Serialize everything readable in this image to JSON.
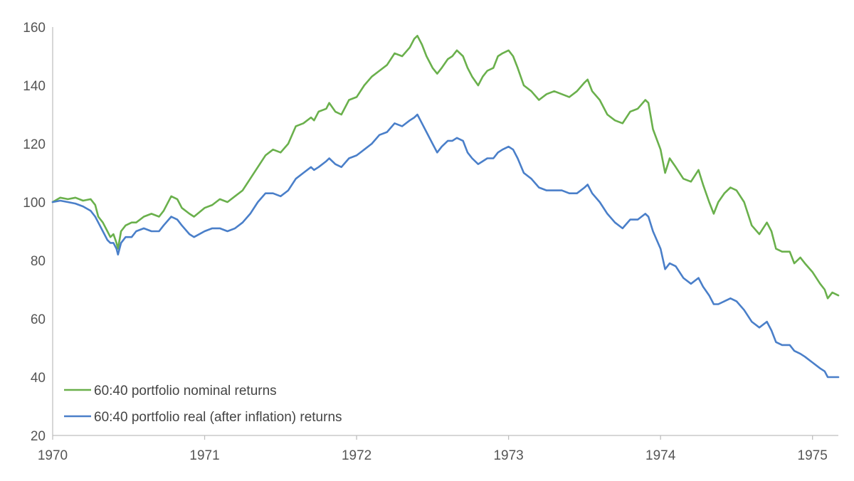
{
  "chart_data": {
    "type": "line",
    "title": "",
    "xlabel": "",
    "ylabel": "",
    "xlim": [
      1970.0,
      1975.17
    ],
    "ylim": [
      20,
      160
    ],
    "y_ticks": [
      20,
      40,
      60,
      80,
      100,
      120,
      140,
      160
    ],
    "x_ticks": [
      {
        "value": 1970,
        "label": "1970"
      },
      {
        "value": 1971,
        "label": "1971"
      },
      {
        "value": 1972,
        "label": "1972"
      },
      {
        "value": 1973,
        "label": "1973"
      },
      {
        "value": 1974,
        "label": "1974"
      },
      {
        "value": 1975,
        "label": "1975"
      }
    ],
    "grid": false,
    "legend_position": "bottom-left",
    "series": [
      {
        "name": "60:40 portfolio nominal returns",
        "color": "#6ab04c",
        "points": [
          [
            1970.0,
            100
          ],
          [
            1970.05,
            101.5
          ],
          [
            1970.1,
            101
          ],
          [
            1970.15,
            101.5
          ],
          [
            1970.2,
            100.5
          ],
          [
            1970.25,
            101
          ],
          [
            1970.28,
            99
          ],
          [
            1970.3,
            95
          ],
          [
            1970.33,
            93
          ],
          [
            1970.36,
            90
          ],
          [
            1970.38,
            88
          ],
          [
            1970.4,
            89
          ],
          [
            1970.42,
            86
          ],
          [
            1970.43,
            84
          ],
          [
            1970.45,
            90
          ],
          [
            1970.48,
            92
          ],
          [
            1970.52,
            93
          ],
          [
            1970.55,
            93
          ],
          [
            1970.6,
            95
          ],
          [
            1970.65,
            96
          ],
          [
            1970.7,
            95
          ],
          [
            1970.73,
            97
          ],
          [
            1970.78,
            102
          ],
          [
            1970.82,
            101
          ],
          [
            1970.85,
            98
          ],
          [
            1970.9,
            96
          ],
          [
            1970.93,
            95
          ],
          [
            1971.0,
            98
          ],
          [
            1971.05,
            99
          ],
          [
            1971.1,
            101
          ],
          [
            1971.15,
            100
          ],
          [
            1971.2,
            102
          ],
          [
            1971.25,
            104
          ],
          [
            1971.3,
            108
          ],
          [
            1971.35,
            112
          ],
          [
            1971.4,
            116
          ],
          [
            1971.45,
            118
          ],
          [
            1971.5,
            117
          ],
          [
            1971.55,
            120
          ],
          [
            1971.6,
            126
          ],
          [
            1971.65,
            127
          ],
          [
            1971.7,
            129
          ],
          [
            1971.72,
            128
          ],
          [
            1971.75,
            131
          ],
          [
            1971.8,
            132
          ],
          [
            1971.82,
            134
          ],
          [
            1971.86,
            131
          ],
          [
            1971.9,
            130
          ],
          [
            1971.95,
            135
          ],
          [
            1972.0,
            136
          ],
          [
            1972.05,
            140
          ],
          [
            1972.1,
            143
          ],
          [
            1972.15,
            145
          ],
          [
            1972.2,
            147
          ],
          [
            1972.25,
            151
          ],
          [
            1972.3,
            150
          ],
          [
            1972.35,
            153
          ],
          [
            1972.38,
            156
          ],
          [
            1972.4,
            157
          ],
          [
            1972.43,
            154
          ],
          [
            1972.46,
            150
          ],
          [
            1972.5,
            146
          ],
          [
            1972.53,
            144
          ],
          [
            1972.56,
            146
          ],
          [
            1972.6,
            149
          ],
          [
            1972.63,
            150
          ],
          [
            1972.66,
            152
          ],
          [
            1972.7,
            150
          ],
          [
            1972.73,
            146
          ],
          [
            1972.76,
            143
          ],
          [
            1972.8,
            140
          ],
          [
            1972.83,
            143
          ],
          [
            1972.86,
            145
          ],
          [
            1972.9,
            146
          ],
          [
            1972.93,
            150
          ],
          [
            1972.96,
            151
          ],
          [
            1973.0,
            152
          ],
          [
            1973.03,
            150
          ],
          [
            1973.06,
            146
          ],
          [
            1973.1,
            140
          ],
          [
            1973.15,
            138
          ],
          [
            1973.2,
            135
          ],
          [
            1973.25,
            137
          ],
          [
            1973.3,
            138
          ],
          [
            1973.35,
            137
          ],
          [
            1973.4,
            136
          ],
          [
            1973.45,
            138
          ],
          [
            1973.5,
            141
          ],
          [
            1973.52,
            142
          ],
          [
            1973.55,
            138
          ],
          [
            1973.6,
            135
          ],
          [
            1973.65,
            130
          ],
          [
            1973.7,
            128
          ],
          [
            1973.75,
            127
          ],
          [
            1973.8,
            131
          ],
          [
            1973.85,
            132
          ],
          [
            1973.9,
            135
          ],
          [
            1973.92,
            134
          ],
          [
            1973.95,
            125
          ],
          [
            1974.0,
            118
          ],
          [
            1974.03,
            110
          ],
          [
            1974.06,
            115
          ],
          [
            1974.1,
            112
          ],
          [
            1974.15,
            108
          ],
          [
            1974.2,
            107
          ],
          [
            1974.25,
            111
          ],
          [
            1974.28,
            106
          ],
          [
            1974.32,
            100
          ],
          [
            1974.35,
            96
          ],
          [
            1974.38,
            100
          ],
          [
            1974.42,
            103
          ],
          [
            1974.46,
            105
          ],
          [
            1974.5,
            104
          ],
          [
            1974.55,
            100
          ],
          [
            1974.6,
            92
          ],
          [
            1974.65,
            89
          ],
          [
            1974.7,
            93
          ],
          [
            1974.73,
            90
          ],
          [
            1974.76,
            84
          ],
          [
            1974.8,
            83
          ],
          [
            1974.85,
            83
          ],
          [
            1974.88,
            79
          ],
          [
            1974.92,
            81
          ],
          [
            1974.95,
            79
          ],
          [
            1975.0,
            76
          ],
          [
            1975.05,
            72
          ],
          [
            1975.08,
            70
          ],
          [
            1975.1,
            67
          ],
          [
            1975.13,
            69
          ],
          [
            1975.17,
            68
          ]
        ]
      },
      {
        "name": "60:40 portfolio real (after inflation) returns",
        "color": "#4a7fc9",
        "points": [
          [
            1970.0,
            100
          ],
          [
            1970.05,
            100.5
          ],
          [
            1970.1,
            100
          ],
          [
            1970.15,
            99.5
          ],
          [
            1970.2,
            98.5
          ],
          [
            1970.25,
            97
          ],
          [
            1970.28,
            95
          ],
          [
            1970.3,
            93
          ],
          [
            1970.33,
            90
          ],
          [
            1970.36,
            87
          ],
          [
            1970.38,
            86
          ],
          [
            1970.4,
            86
          ],
          [
            1970.42,
            84
          ],
          [
            1970.43,
            82
          ],
          [
            1970.45,
            86
          ],
          [
            1970.48,
            88
          ],
          [
            1970.52,
            88
          ],
          [
            1970.55,
            90
          ],
          [
            1970.6,
            91
          ],
          [
            1970.65,
            90
          ],
          [
            1970.7,
            90
          ],
          [
            1970.73,
            92
          ],
          [
            1970.78,
            95
          ],
          [
            1970.82,
            94
          ],
          [
            1970.85,
            92
          ],
          [
            1970.9,
            89
          ],
          [
            1970.93,
            88
          ],
          [
            1971.0,
            90
          ],
          [
            1971.05,
            91
          ],
          [
            1971.1,
            91
          ],
          [
            1971.15,
            90
          ],
          [
            1971.2,
            91
          ],
          [
            1971.25,
            93
          ],
          [
            1971.3,
            96
          ],
          [
            1971.35,
            100
          ],
          [
            1971.4,
            103
          ],
          [
            1971.45,
            103
          ],
          [
            1971.5,
            102
          ],
          [
            1971.55,
            104
          ],
          [
            1971.6,
            108
          ],
          [
            1971.65,
            110
          ],
          [
            1971.7,
            112
          ],
          [
            1971.72,
            111
          ],
          [
            1971.75,
            112
          ],
          [
            1971.8,
            114
          ],
          [
            1971.82,
            115
          ],
          [
            1971.86,
            113
          ],
          [
            1971.9,
            112
          ],
          [
            1971.95,
            115
          ],
          [
            1972.0,
            116
          ],
          [
            1972.05,
            118
          ],
          [
            1972.1,
            120
          ],
          [
            1972.15,
            123
          ],
          [
            1972.2,
            124
          ],
          [
            1972.25,
            127
          ],
          [
            1972.3,
            126
          ],
          [
            1972.35,
            128
          ],
          [
            1972.38,
            129
          ],
          [
            1972.4,
            130
          ],
          [
            1972.43,
            127
          ],
          [
            1972.46,
            124
          ],
          [
            1972.5,
            120
          ],
          [
            1972.53,
            117
          ],
          [
            1972.56,
            119
          ],
          [
            1972.6,
            121
          ],
          [
            1972.63,
            121
          ],
          [
            1972.66,
            122
          ],
          [
            1972.7,
            121
          ],
          [
            1972.73,
            117
          ],
          [
            1972.76,
            115
          ],
          [
            1972.8,
            113
          ],
          [
            1972.83,
            114
          ],
          [
            1972.86,
            115
          ],
          [
            1972.9,
            115
          ],
          [
            1972.93,
            117
          ],
          [
            1972.96,
            118
          ],
          [
            1973.0,
            119
          ],
          [
            1973.03,
            118
          ],
          [
            1973.06,
            115
          ],
          [
            1973.1,
            110
          ],
          [
            1973.15,
            108
          ],
          [
            1973.2,
            105
          ],
          [
            1973.25,
            104
          ],
          [
            1973.3,
            104
          ],
          [
            1973.35,
            104
          ],
          [
            1973.4,
            103
          ],
          [
            1973.45,
            103
          ],
          [
            1973.5,
            105
          ],
          [
            1973.52,
            106
          ],
          [
            1973.55,
            103
          ],
          [
            1973.6,
            100
          ],
          [
            1973.65,
            96
          ],
          [
            1973.7,
            93
          ],
          [
            1973.75,
            91
          ],
          [
            1973.8,
            94
          ],
          [
            1973.85,
            94
          ],
          [
            1973.9,
            96
          ],
          [
            1973.92,
            95
          ],
          [
            1973.95,
            90
          ],
          [
            1974.0,
            84
          ],
          [
            1974.03,
            77
          ],
          [
            1974.06,
            79
          ],
          [
            1974.1,
            78
          ],
          [
            1974.15,
            74
          ],
          [
            1974.2,
            72
          ],
          [
            1974.25,
            74
          ],
          [
            1974.28,
            71
          ],
          [
            1974.32,
            68
          ],
          [
            1974.35,
            65
          ],
          [
            1974.38,
            65
          ],
          [
            1974.42,
            66
          ],
          [
            1974.46,
            67
          ],
          [
            1974.5,
            66
          ],
          [
            1974.55,
            63
          ],
          [
            1974.6,
            59
          ],
          [
            1974.65,
            57
          ],
          [
            1974.7,
            59
          ],
          [
            1974.73,
            56
          ],
          [
            1974.76,
            52
          ],
          [
            1974.8,
            51
          ],
          [
            1974.85,
            51
          ],
          [
            1974.88,
            49
          ],
          [
            1974.92,
            48
          ],
          [
            1974.95,
            47
          ],
          [
            1975.0,
            45
          ],
          [
            1975.05,
            43
          ],
          [
            1975.08,
            42
          ],
          [
            1975.1,
            40
          ],
          [
            1975.13,
            40
          ],
          [
            1975.17,
            40
          ]
        ]
      }
    ]
  }
}
